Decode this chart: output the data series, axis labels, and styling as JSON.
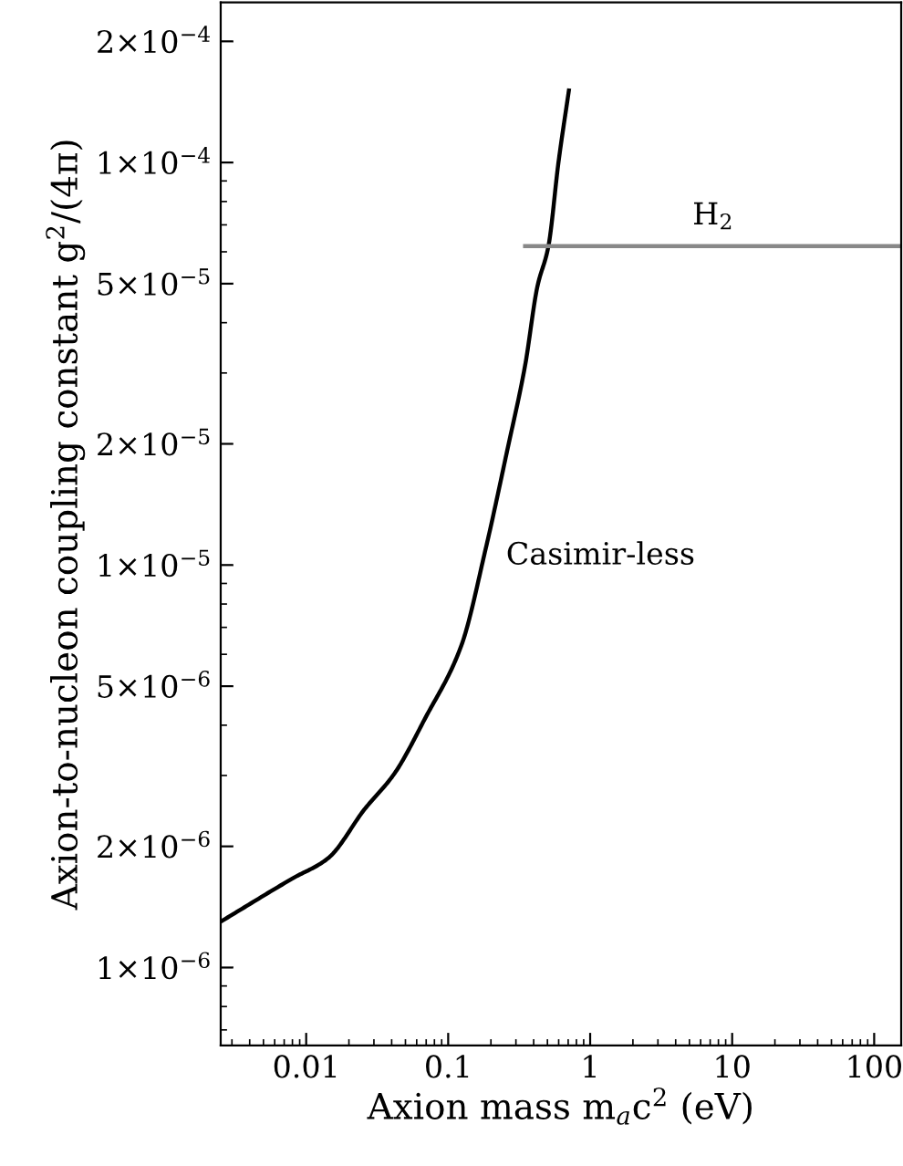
{
  "chart_data": {
    "type": "line",
    "xlabel": "Axion mass m$_{a}$c$^{2}$ (eV)",
    "ylabel": "Axion-to-nucleon coupling constant g$^{2}$/(4π)",
    "log": "xy",
    "xlim": [
      0.0025,
      155
    ],
    "ylim": [
      6.4e-07,
      0.00025
    ],
    "xticks": [
      0.01,
      0.1,
      1,
      10,
      100
    ],
    "yticks": [
      {
        "value": 1e-06,
        "label": "1×10$^{−6}$"
      },
      {
        "value": 2e-06,
        "label": "2×10$^{−6}$"
      },
      {
        "value": 5e-06,
        "label": "5×10$^{−6}$"
      },
      {
        "value": 1e-05,
        "label": "1×10$^{−5}$"
      },
      {
        "value": 2e-05,
        "label": "2×10$^{−5}$"
      },
      {
        "value": 5e-05,
        "label": "5×10$^{−5}$"
      },
      {
        "value": 0.0001,
        "label": "1×10$^{−4}$"
      },
      {
        "value": 0.0002,
        "label": "2×10$^{−4}$"
      }
    ],
    "grid": false,
    "legend": false,
    "marker": "none",
    "line_style": "solid",
    "series": [
      {
        "name": "Casimir-less",
        "color": "#000000",
        "x": [
          0.0025,
          0.0079,
          0.0143,
          0.0257,
          0.042,
          0.0688,
          0.124,
          0.184,
          0.26,
          0.348,
          0.425,
          0.507,
          0.6,
          0.708
        ],
        "values": [
          1.3e-06,
          1.66e-06,
          1.87e-06,
          2.47e-06,
          3.04e-06,
          4.16e-06,
          6.32e-06,
          1.1e-05,
          1.92e-05,
          3.13e-05,
          4.92e-05,
          6.17e-05,
          0.000101,
          0.000151
        ]
      },
      {
        "name": "H$_{2}$",
        "color": "#888888",
        "x": [
          0.348,
          155
        ],
        "values": [
          6.2e-05,
          6.2e-05
        ]
      }
    ]
  }
}
